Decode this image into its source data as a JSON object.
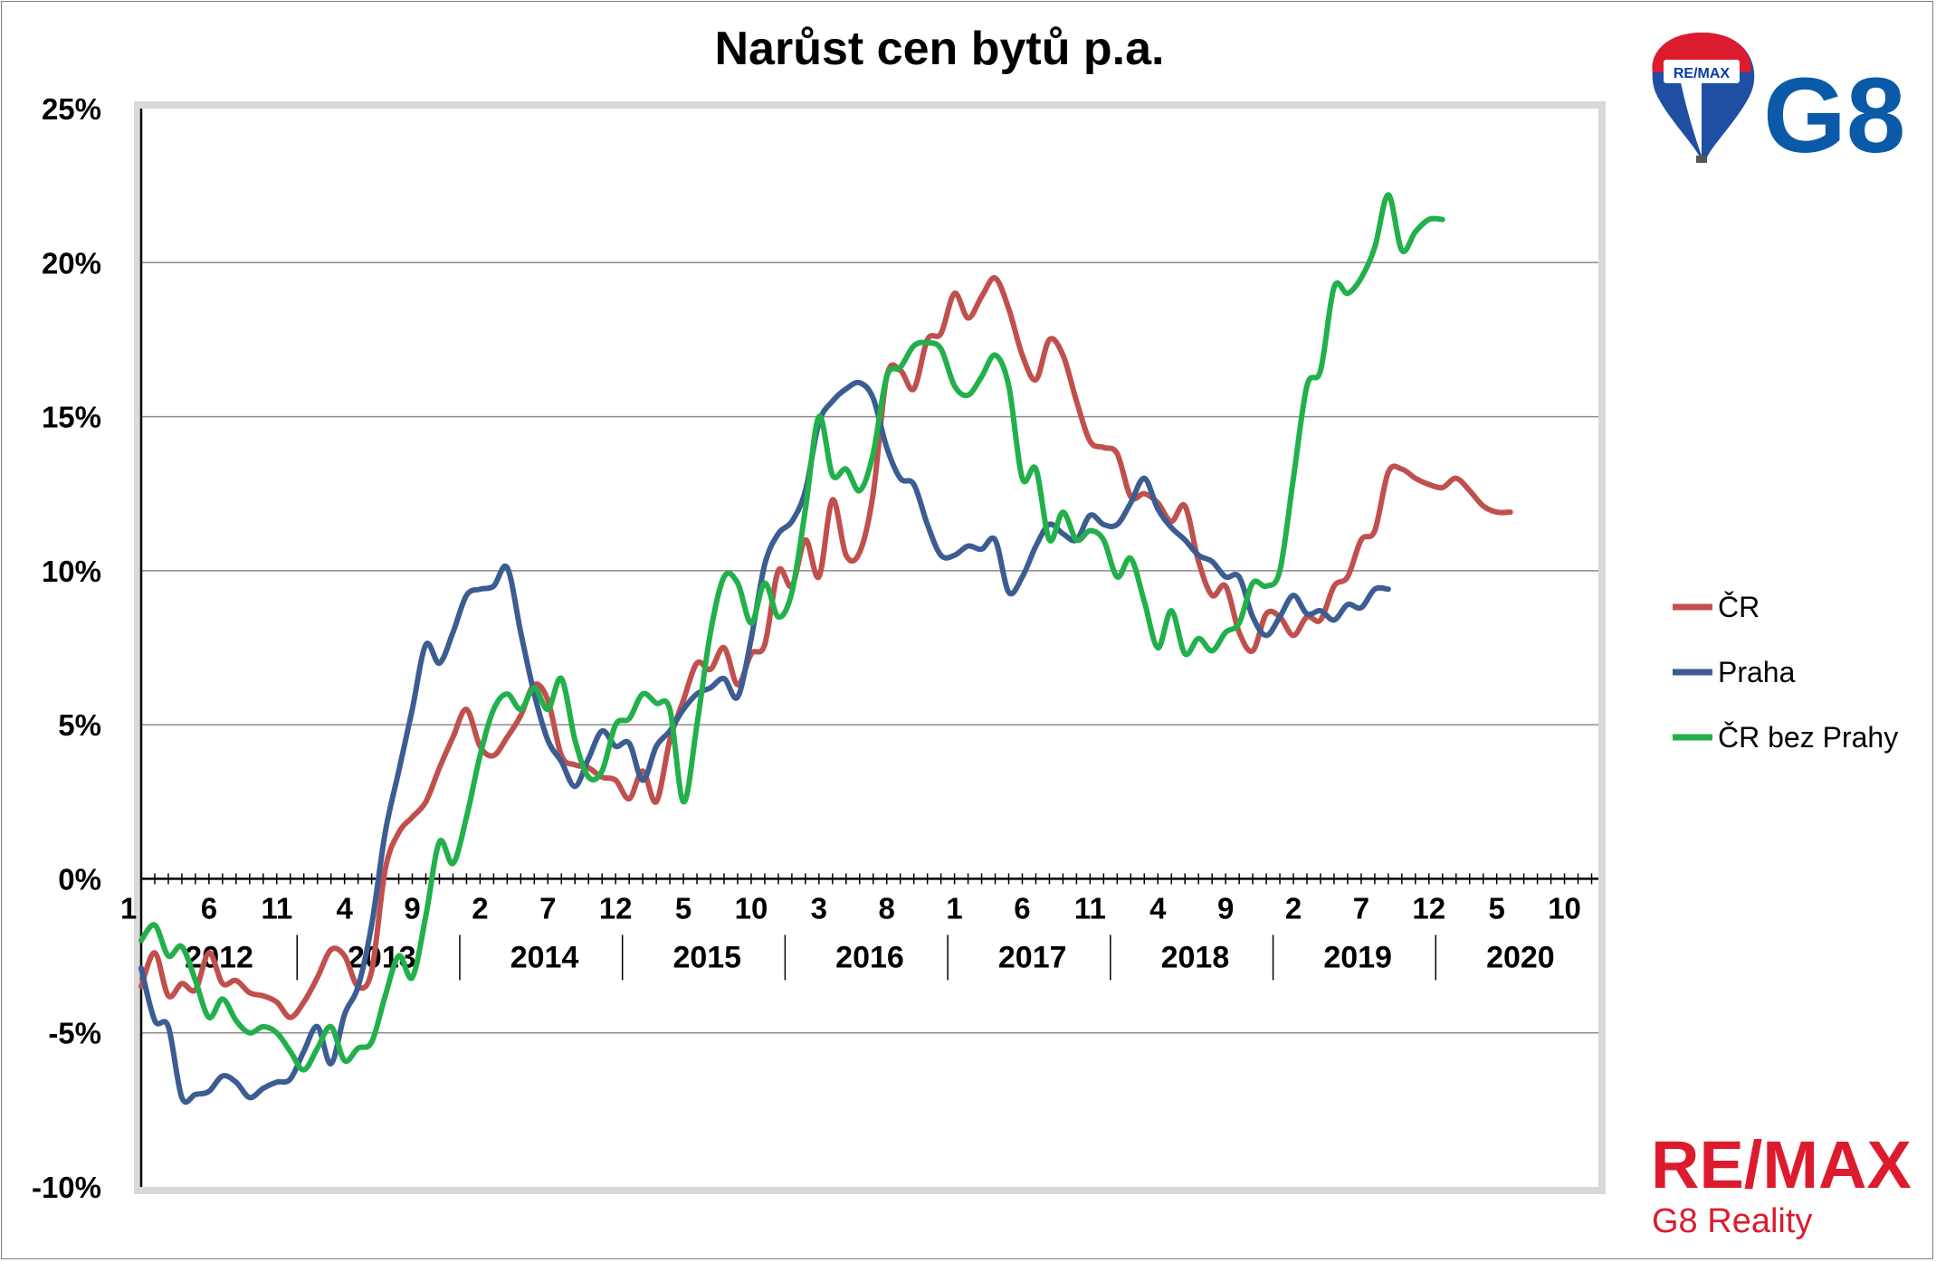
{
  "chart_data": {
    "type": "line",
    "title": "Narůst cen bytů p.a.",
    "ylim": [
      -10,
      25
    ],
    "y_ticks": [
      "25%",
      "20%",
      "15%",
      "10%",
      "5%",
      "0%",
      "-5%",
      "-10%"
    ],
    "x_month_ticks": [
      "1",
      "6",
      "11",
      "4",
      "9",
      "2",
      "7",
      "12",
      "5",
      "10",
      "3",
      "8",
      "1",
      "6",
      "11",
      "4",
      "9",
      "2",
      "7",
      "12",
      "5",
      "10"
    ],
    "x_year_labels": [
      "2012",
      "2013",
      "2014",
      "2015",
      "2016",
      "2017",
      "2018",
      "2019",
      "2020"
    ],
    "x_start": "2012-01",
    "x_end": "2020-12",
    "grid": true,
    "legend_position": "right",
    "series": [
      {
        "name": "ČR",
        "color": "#c0504d",
        "values": [
          -3.5,
          -2.4,
          -3.8,
          -3.4,
          -3.6,
          -2.4,
          -3.4,
          -3.3,
          -3.7,
          -3.8,
          -4.0,
          -4.5,
          -4.0,
          -3.2,
          -2.3,
          -2.5,
          -3.5,
          -3.0,
          0.3,
          1.5,
          2.0,
          2.5,
          3.6,
          4.6,
          5.5,
          4.3,
          4.0,
          4.6,
          5.3,
          6.3,
          5.8,
          4.0,
          3.7,
          3.6,
          3.3,
          3.2,
          2.6,
          3.5,
          2.5,
          4.5,
          5.8,
          7.0,
          6.8,
          7.5,
          6.3,
          7.3,
          7.6,
          10.0,
          9.5,
          11.0,
          9.8,
          12.3,
          10.5,
          10.6,
          12.5,
          16.3,
          16.5,
          15.9,
          17.5,
          17.7,
          19.0,
          18.2,
          18.9,
          19.5,
          18.5,
          17.0,
          16.2,
          17.5,
          17.0,
          15.5,
          14.2,
          14.0,
          13.8,
          12.4,
          12.5,
          12.2,
          11.6,
          12.1,
          10.3,
          9.2,
          9.5,
          8.0,
          7.4,
          8.6,
          8.5,
          7.9,
          8.5,
          8.4,
          9.5,
          9.8,
          11.0,
          11.3,
          13.2,
          13.3,
          13.0,
          12.8,
          12.7,
          13.0,
          12.6,
          12.1,
          11.9,
          11.9
        ]
      },
      {
        "name": "Praha",
        "color": "#3c5d92",
        "values": [
          -2.9,
          -4.6,
          -4.8,
          -7.1,
          -7.0,
          -6.9,
          -6.4,
          -6.6,
          -7.1,
          -6.8,
          -6.6,
          -6.5,
          -5.6,
          -4.8,
          -6.0,
          -4.4,
          -3.5,
          -1.5,
          1.5,
          3.5,
          5.5,
          7.6,
          7.0,
          8.0,
          9.2,
          9.4,
          9.5,
          10.1,
          8.0,
          6.0,
          4.5,
          3.8,
          3.0,
          3.9,
          4.8,
          4.3,
          4.4,
          3.2,
          4.3,
          4.8,
          5.5,
          6.0,
          6.2,
          6.5,
          5.9,
          7.8,
          10.2,
          11.2,
          11.6,
          12.6,
          14.8,
          15.5,
          15.9,
          16.1,
          15.6,
          14.0,
          13.0,
          12.8,
          11.5,
          10.5,
          10.5,
          10.8,
          10.7,
          11.0,
          9.3,
          9.8,
          10.8,
          11.5,
          11.2,
          11.0,
          11.8,
          11.5,
          11.5,
          12.2,
          13.0,
          12.0,
          11.4,
          11.0,
          10.5,
          10.3,
          9.8,
          9.8,
          8.5,
          7.9,
          8.5,
          9.2,
          8.6,
          8.7,
          8.4,
          8.9,
          8.8,
          9.4,
          9.4
        ]
      },
      {
        "name": "ČR bez Prahy",
        "color": "#22b04b",
        "values": [
          -2.0,
          -1.5,
          -2.5,
          -2.2,
          -3.3,
          -4.5,
          -3.9,
          -4.6,
          -5.0,
          -4.8,
          -5.0,
          -5.6,
          -6.2,
          -5.5,
          -4.8,
          -5.9,
          -5.5,
          -5.3,
          -3.8,
          -2.5,
          -3.2,
          -1.2,
          1.2,
          0.5,
          2.0,
          4.0,
          5.5,
          6.0,
          5.5,
          6.2,
          5.5,
          6.5,
          4.5,
          3.3,
          3.5,
          5.0,
          5.2,
          6.0,
          5.7,
          5.5,
          2.5,
          5.0,
          8.0,
          9.8,
          9.6,
          8.3,
          9.6,
          8.5,
          9.3,
          12.0,
          15.0,
          13.1,
          13.3,
          12.6,
          13.8,
          16.3,
          16.6,
          17.3,
          17.4,
          17.2,
          16.0,
          15.7,
          16.3,
          17.0,
          16.0,
          13.0,
          13.3,
          11.0,
          11.9,
          11.0,
          11.3,
          11.0,
          9.8,
          10.4,
          9.0,
          7.5,
          8.7,
          7.3,
          7.8,
          7.4,
          8.0,
          8.3,
          9.6,
          9.5,
          10.0,
          13.0,
          16.0,
          16.5,
          19.2,
          19.0,
          19.5,
          20.5,
          22.2,
          20.4,
          21.0,
          21.4,
          21.4
        ]
      }
    ]
  },
  "logos": {
    "balloon_text": "RE/MAX",
    "g8_text": "G8",
    "brand_name": "RE/MAX",
    "brand_sub": "G8 Reality"
  }
}
